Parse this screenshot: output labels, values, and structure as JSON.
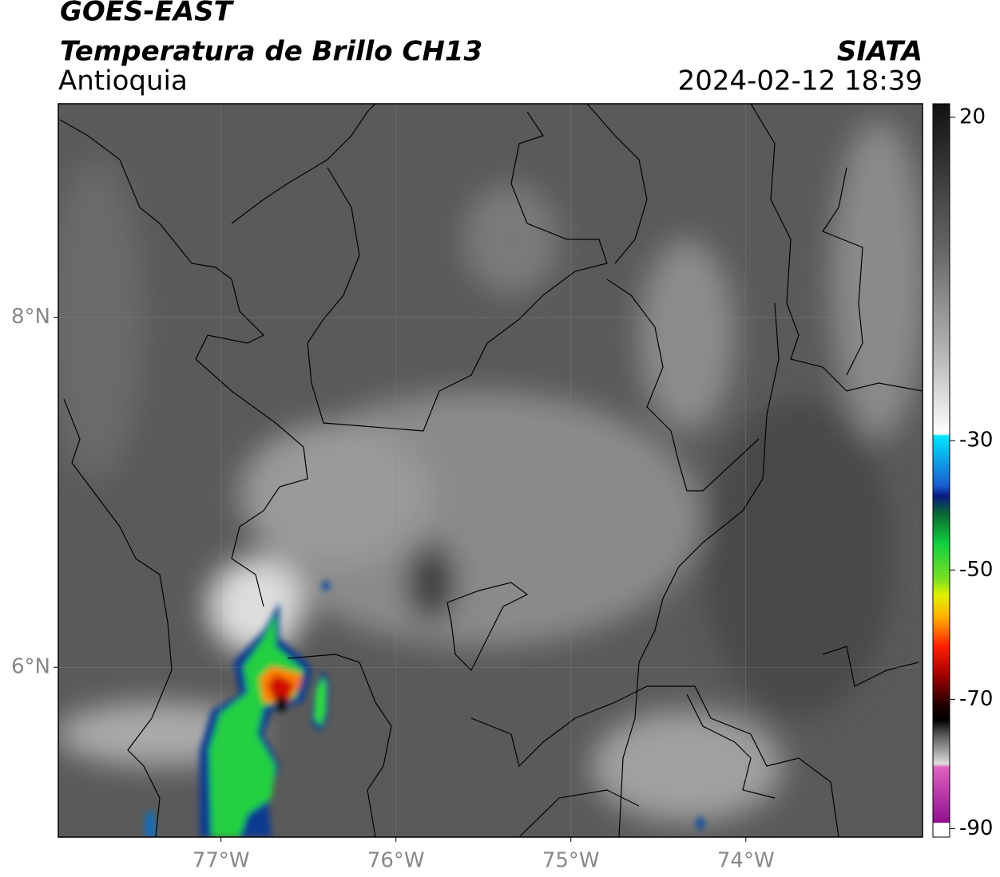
{
  "header": {
    "title": "GOES-EAST",
    "subtitle": "Temperatura de Brillo CH13",
    "region": "Antioquia",
    "source": "SIATA",
    "datetime": "2024-02-12 18:39"
  },
  "map": {
    "lonlim": [
      -77.93,
      -72.99
    ],
    "latlim": [
      5.03,
      9.22
    ],
    "lon_ticks": [
      {
        "value": -77,
        "label": "77°W"
      },
      {
        "value": -76,
        "label": "76°W"
      },
      {
        "value": -75,
        "label": "75°W"
      },
      {
        "value": -74,
        "label": "74°W"
      }
    ],
    "lat_ticks": [
      {
        "value": 8,
        "label": "8°N"
      },
      {
        "value": 6,
        "label": "6°N"
      }
    ]
  },
  "colorbar": {
    "lim": [
      -91.3,
      22.1
    ],
    "ticks": [
      20,
      -30,
      -50,
      -70,
      -90
    ]
  }
}
